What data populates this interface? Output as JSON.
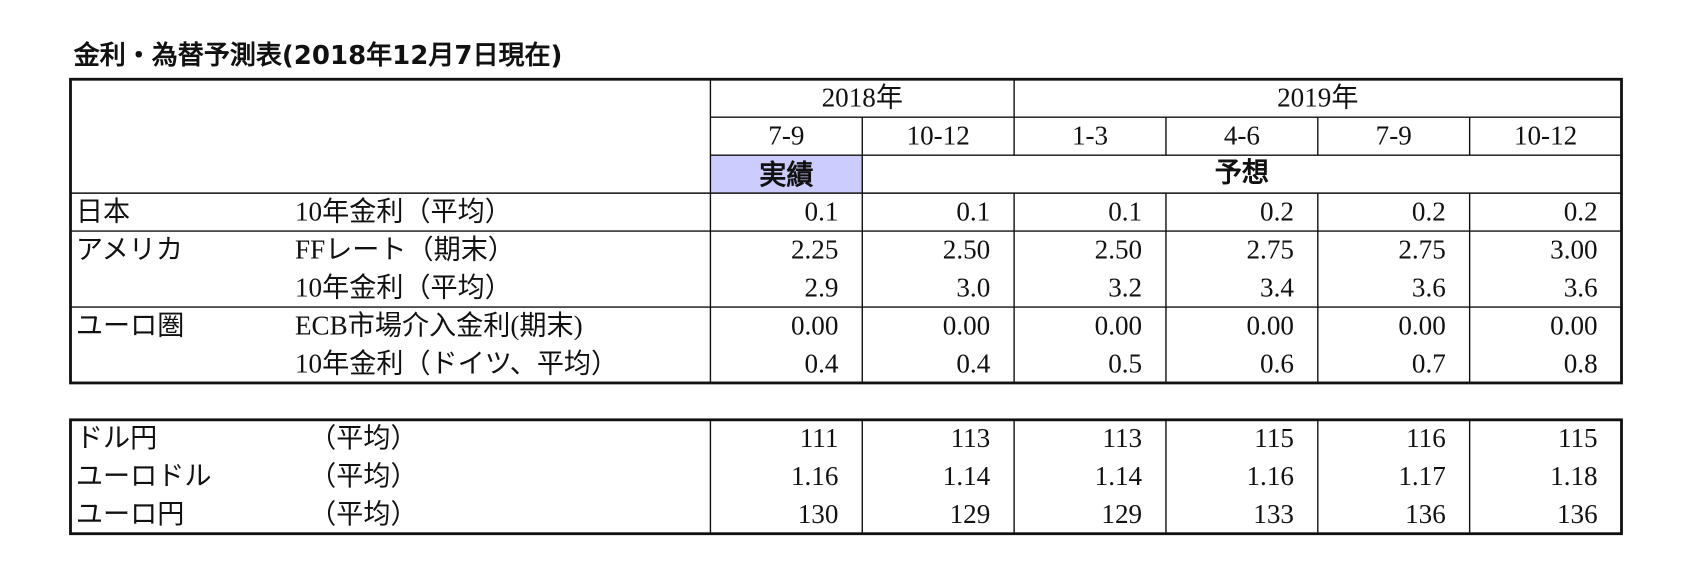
{
  "title": "金利・為替予測表(2018年12月7日現在)",
  "header": {
    "years": [
      "2018年",
      "2019年"
    ],
    "periods": [
      "7-9",
      "10-12",
      "1-3",
      "4-6",
      "7-9",
      "10-12"
    ],
    "actual": "実績",
    "forecast": "予想"
  },
  "rates_table": {
    "rows": [
      {
        "region": "日本",
        "item": "10年金利（平均）",
        "values": [
          "0.1",
          "0.1",
          "0.1",
          "0.2",
          "0.2",
          "0.2"
        ]
      },
      {
        "region": "アメリカ",
        "item": "FFレート（期末）",
        "values": [
          "2.25",
          "2.50",
          "2.50",
          "2.75",
          "2.75",
          "3.00"
        ]
      },
      {
        "item": "10年金利（平均）",
        "values": [
          "2.9",
          "3.0",
          "3.2",
          "3.4",
          "3.6",
          "3.6"
        ]
      },
      {
        "region": "ユーロ圏",
        "item": "ECB市場介入金利(期末)",
        "values": [
          "0.00",
          "0.00",
          "0.00",
          "0.00",
          "0.00",
          "0.00"
        ]
      },
      {
        "item": "10年金利（ドイツ、平均）",
        "values": [
          "0.4",
          "0.4",
          "0.5",
          "0.6",
          "0.7",
          "0.8"
        ]
      }
    ]
  },
  "fx_table": {
    "rows": [
      {
        "pair": "ドル円",
        "item": "（平均）",
        "values": [
          "111",
          "113",
          "113",
          "115",
          "116",
          "115"
        ]
      },
      {
        "pair": "ユーロドル",
        "item": "（平均）",
        "values": [
          "1.16",
          "1.14",
          "1.14",
          "1.16",
          "1.17",
          "1.18"
        ]
      },
      {
        "pair": "ユーロ円",
        "item": "（平均）",
        "values": [
          "130",
          "129",
          "129",
          "133",
          "136",
          "136"
        ]
      }
    ]
  }
}
